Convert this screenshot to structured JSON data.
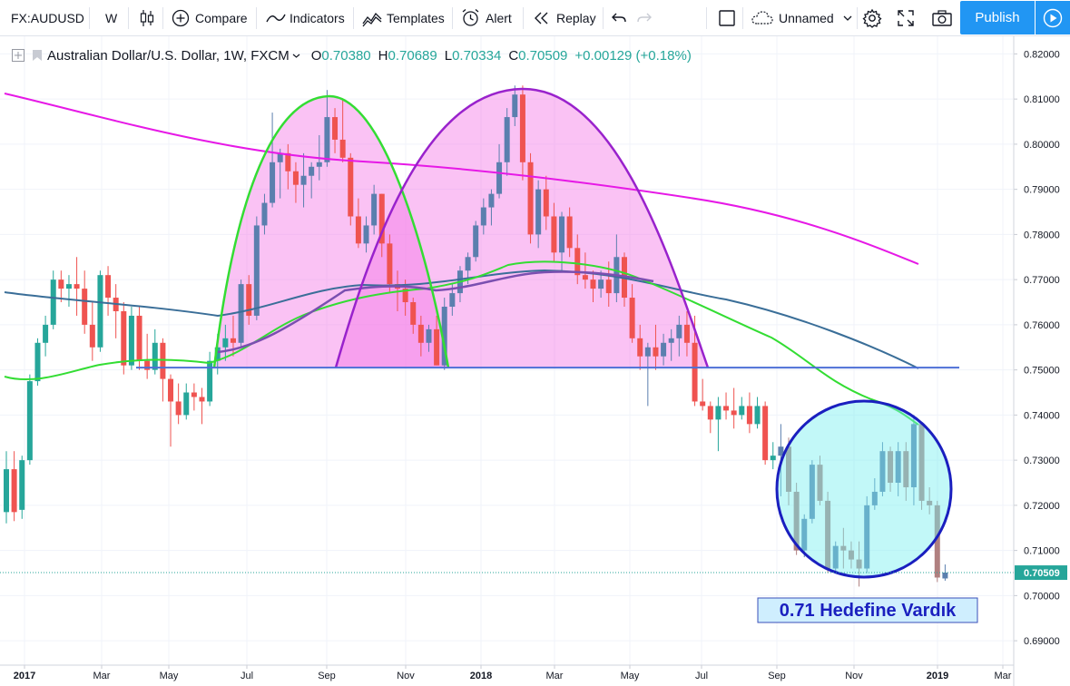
{
  "toolbar": {
    "symbol": "FX:AUDUSD",
    "interval": "W",
    "compare": "Compare",
    "indicators": "Indicators",
    "templates": "Templates",
    "alert": "Alert",
    "replay": "Replay",
    "layout_name": "Unnamed",
    "publish": "Publish"
  },
  "legend": {
    "title": "Australian Dollar/U.S. Dollar, 1W, FXCM",
    "open_label": "O",
    "open": "0.70380",
    "high_label": "H",
    "high": "0.70689",
    "low_label": "L",
    "low": "0.70334",
    "close_label": "C",
    "close": "0.70509",
    "change": "+0.00129 (+0.18%)"
  },
  "annotation": "0.71 Hedefine Vardık",
  "current_price_label": "0.70509",
  "colors": {
    "up": "#26a69a",
    "down": "#ef5350",
    "up_alt": "#5b7fae",
    "down_alt": "#b08080",
    "ma_magenta": "#e619e6",
    "ma_blue": "#3a6e98",
    "ma_green": "#33dd33",
    "ma_purple": "#7a4fb0",
    "support_line": "#4d6fd6",
    "publish": "#2196f3"
  },
  "chart_data": {
    "type": "candlestick",
    "symbol": "FX:AUDUSD",
    "timeframe": "1W",
    "price_axis": {
      "ticks": [
        "0.82000",
        "0.81000",
        "0.80000",
        "0.79000",
        "0.78000",
        "0.77000",
        "0.76000",
        "0.75000",
        "0.74000",
        "0.73000",
        "0.72000",
        "0.71000",
        "0.70000",
        "0.69000"
      ],
      "range": [
        0.685,
        0.8235
      ]
    },
    "time_axis": {
      "ticks": [
        "2017",
        "Mar",
        "May",
        "Jul",
        "Sep",
        "Nov",
        "2018",
        "Mar",
        "May",
        "Jul",
        "Sep",
        "Nov",
        "2019",
        "Mar"
      ]
    },
    "annotations": {
      "support_level": 0.7505,
      "target_text": "0.71 Hedefine Vardık"
    },
    "candles": [
      [
        0.7185,
        0.732,
        0.716,
        0.728
      ],
      [
        0.728,
        0.732,
        0.7165,
        0.7185
      ],
      [
        0.719,
        0.731,
        0.717,
        0.73
      ],
      [
        0.73,
        0.749,
        0.729,
        0.7475
      ],
      [
        0.7475,
        0.757,
        0.7465,
        0.756
      ],
      [
        0.756,
        0.762,
        0.753,
        0.76
      ],
      [
        0.76,
        0.772,
        0.759,
        0.77
      ],
      [
        0.77,
        0.772,
        0.765,
        0.768
      ],
      [
        0.768,
        0.771,
        0.764,
        0.769
      ],
      [
        0.769,
        0.775,
        0.762,
        0.768
      ],
      [
        0.768,
        0.772,
        0.758,
        0.76
      ],
      [
        0.76,
        0.765,
        0.752,
        0.755
      ],
      [
        0.755,
        0.772,
        0.754,
        0.771
      ],
      [
        0.771,
        0.773,
        0.762,
        0.766
      ],
      [
        0.766,
        0.769,
        0.757,
        0.763
      ],
      [
        0.763,
        0.765,
        0.749,
        0.751
      ],
      [
        0.751,
        0.764,
        0.75,
        0.762
      ],
      [
        0.762,
        0.764,
        0.75,
        0.752
      ],
      [
        0.752,
        0.758,
        0.748,
        0.75
      ],
      [
        0.75,
        0.759,
        0.749,
        0.756
      ],
      [
        0.756,
        0.757,
        0.743,
        0.748
      ],
      [
        0.748,
        0.749,
        0.733,
        0.743
      ],
      [
        0.743,
        0.747,
        0.738,
        0.74
      ],
      [
        0.74,
        0.747,
        0.739,
        0.745
      ],
      [
        0.745,
        0.747,
        0.741,
        0.744
      ],
      [
        0.744,
        0.746,
        0.738,
        0.743
      ],
      [
        0.743,
        0.754,
        0.742,
        0.752
      ],
      [
        0.752,
        0.758,
        0.749,
        0.755
      ],
      [
        0.755,
        0.76,
        0.752,
        0.757
      ],
      [
        0.757,
        0.762,
        0.753,
        0.756
      ],
      [
        0.756,
        0.77,
        0.755,
        0.769
      ],
      [
        0.769,
        0.771,
        0.76,
        0.762
      ],
      [
        0.762,
        0.784,
        0.761,
        0.782
      ],
      [
        0.782,
        0.789,
        0.78,
        0.787
      ],
      [
        0.787,
        0.807,
        0.786,
        0.796
      ],
      [
        0.796,
        0.799,
        0.788,
        0.798
      ],
      [
        0.798,
        0.8,
        0.79,
        0.794
      ],
      [
        0.794,
        0.796,
        0.787,
        0.791
      ],
      [
        0.791,
        0.798,
        0.786,
        0.793
      ],
      [
        0.793,
        0.796,
        0.788,
        0.795
      ],
      [
        0.795,
        0.802,
        0.792,
        0.796
      ],
      [
        0.796,
        0.812,
        0.795,
        0.806
      ],
      [
        0.806,
        0.808,
        0.798,
        0.801
      ],
      [
        0.801,
        0.81,
        0.796,
        0.797
      ],
      [
        0.797,
        0.798,
        0.782,
        0.784
      ],
      [
        0.784,
        0.788,
        0.777,
        0.778
      ],
      [
        0.778,
        0.784,
        0.776,
        0.782
      ],
      [
        0.782,
        0.791,
        0.78,
        0.789
      ],
      [
        0.789,
        0.789,
        0.775,
        0.778
      ],
      [
        0.778,
        0.78,
        0.767,
        0.769
      ],
      [
        0.769,
        0.772,
        0.763,
        0.768
      ],
      [
        0.768,
        0.77,
        0.762,
        0.765
      ],
      [
        0.765,
        0.766,
        0.758,
        0.76
      ],
      [
        0.76,
        0.762,
        0.753,
        0.756
      ],
      [
        0.756,
        0.76,
        0.754,
        0.759
      ],
      [
        0.759,
        0.762,
        0.751,
        0.751
      ],
      [
        0.751,
        0.766,
        0.75,
        0.764
      ],
      [
        0.764,
        0.769,
        0.762,
        0.767
      ],
      [
        0.767,
        0.773,
        0.765,
        0.772
      ],
      [
        0.772,
        0.776,
        0.769,
        0.775
      ],
      [
        0.775,
        0.783,
        0.774,
        0.782
      ],
      [
        0.782,
        0.788,
        0.78,
        0.786
      ],
      [
        0.786,
        0.79,
        0.782,
        0.789
      ],
      [
        0.789,
        0.8,
        0.788,
        0.796
      ],
      [
        0.796,
        0.808,
        0.793,
        0.806
      ],
      [
        0.806,
        0.813,
        0.804,
        0.811
      ],
      [
        0.811,
        0.813,
        0.792,
        0.796
      ],
      [
        0.796,
        0.798,
        0.778,
        0.78
      ],
      [
        0.78,
        0.792,
        0.777,
        0.79
      ],
      [
        0.79,
        0.793,
        0.781,
        0.784
      ],
      [
        0.784,
        0.787,
        0.774,
        0.776
      ],
      [
        0.776,
        0.785,
        0.772,
        0.784
      ],
      [
        0.784,
        0.786,
        0.775,
        0.777
      ],
      [
        0.777,
        0.78,
        0.769,
        0.771
      ],
      [
        0.771,
        0.776,
        0.768,
        0.77
      ],
      [
        0.77,
        0.772,
        0.765,
        0.768
      ],
      [
        0.768,
        0.772,
        0.766,
        0.77
      ],
      [
        0.77,
        0.774,
        0.764,
        0.767
      ],
      [
        0.767,
        0.78,
        0.765,
        0.775
      ],
      [
        0.775,
        0.776,
        0.764,
        0.766
      ],
      [
        0.766,
        0.769,
        0.756,
        0.757
      ],
      [
        0.757,
        0.76,
        0.75,
        0.753
      ],
      [
        0.753,
        0.756,
        0.742,
        0.755
      ],
      [
        0.755,
        0.76,
        0.75,
        0.753
      ],
      [
        0.753,
        0.758,
        0.751,
        0.756
      ],
      [
        0.756,
        0.759,
        0.752,
        0.757
      ],
      [
        0.757,
        0.762,
        0.753,
        0.76
      ],
      [
        0.76,
        0.763,
        0.753,
        0.756
      ],
      [
        0.756,
        0.762,
        0.742,
        0.743
      ],
      [
        0.743,
        0.748,
        0.741,
        0.742
      ],
      [
        0.742,
        0.743,
        0.736,
        0.739
      ],
      [
        0.739,
        0.744,
        0.732,
        0.742
      ],
      [
        0.742,
        0.745,
        0.739,
        0.741
      ],
      [
        0.741,
        0.746,
        0.737,
        0.74
      ],
      [
        0.74,
        0.744,
        0.739,
        0.742
      ],
      [
        0.742,
        0.745,
        0.736,
        0.738
      ],
      [
        0.738,
        0.744,
        0.737,
        0.742
      ],
      [
        0.742,
        0.743,
        0.729,
        0.73
      ],
      [
        0.73,
        0.734,
        0.728,
        0.731
      ],
      [
        0.731,
        0.738,
        0.722,
        0.733
      ],
      [
        0.733,
        0.735,
        0.72,
        0.723
      ],
      [
        0.723,
        0.725,
        0.709,
        0.71
      ],
      [
        0.71,
        0.718,
        0.7085,
        0.717
      ],
      [
        0.717,
        0.73,
        0.716,
        0.729
      ],
      [
        0.729,
        0.731,
        0.72,
        0.721
      ],
      [
        0.721,
        0.723,
        0.705,
        0.706
      ],
      [
        0.706,
        0.712,
        0.705,
        0.711
      ],
      [
        0.711,
        0.715,
        0.706,
        0.71
      ],
      [
        0.71,
        0.712,
        0.706,
        0.708
      ],
      [
        0.708,
        0.712,
        0.702,
        0.706
      ],
      [
        0.706,
        0.722,
        0.705,
        0.72
      ],
      [
        0.72,
        0.726,
        0.719,
        0.723
      ],
      [
        0.723,
        0.734,
        0.722,
        0.732
      ],
      [
        0.732,
        0.733,
        0.723,
        0.725
      ],
      [
        0.725,
        0.734,
        0.722,
        0.732
      ],
      [
        0.732,
        0.734,
        0.721,
        0.724
      ],
      [
        0.724,
        0.74,
        0.72,
        0.738
      ],
      [
        0.738,
        0.738,
        0.719,
        0.721
      ],
      [
        0.721,
        0.724,
        0.718,
        0.72
      ],
      [
        0.72,
        0.721,
        0.703,
        0.704
      ],
      [
        0.7038,
        0.7069,
        0.7033,
        0.7051
      ]
    ],
    "moving_averages": [
      {
        "name": "MA magenta",
        "color": "#e619e6"
      },
      {
        "name": "MA blue",
        "color": "#3a6e98"
      },
      {
        "name": "MA green",
        "color": "#33dd33"
      },
      {
        "name": "MA purple",
        "color": "#7a4fb0"
      }
    ]
  }
}
